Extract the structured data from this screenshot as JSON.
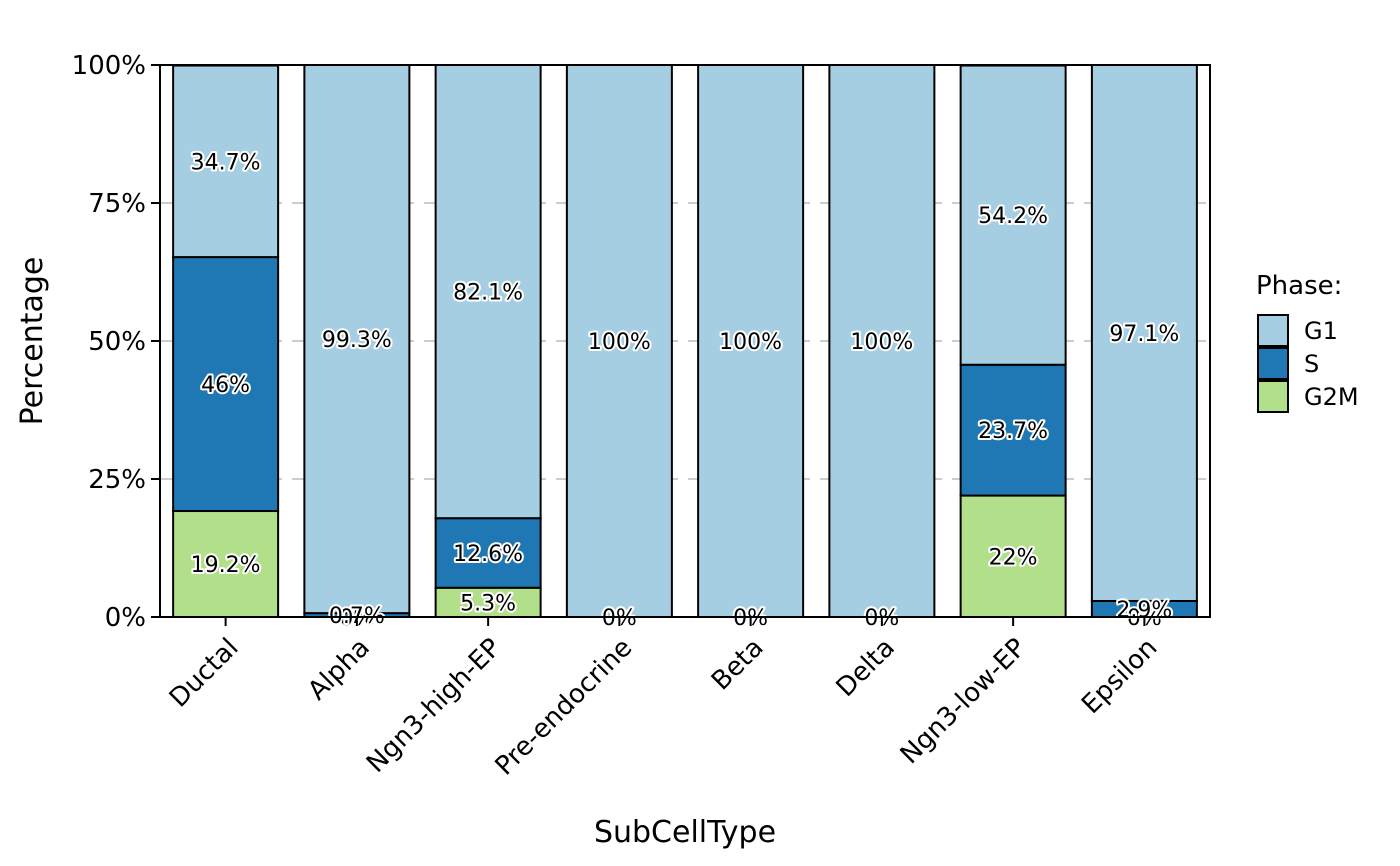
{
  "chart_data": {
    "type": "bar",
    "stacked": true,
    "title": "",
    "xlabel": "SubCellType",
    "ylabel": "Percentage",
    "ylim": [
      0,
      100
    ],
    "yticks": [
      "0%",
      "25%",
      "50%",
      "75%",
      "100%"
    ],
    "ytick_values": [
      0,
      25,
      50,
      75,
      100
    ],
    "grid": "horizontal dashed",
    "legend_position": "right",
    "legend_title": "Phase:",
    "categories": [
      "Ductal",
      "Alpha",
      "Ngn3-high-EP",
      "Pre-endocrine",
      "Beta",
      "Delta",
      "Ngn3-low-EP",
      "Epsilon"
    ],
    "series": [
      {
        "name": "G1",
        "color": "#a6cee3",
        "values": [
          34.7,
          99.3,
          82.1,
          100,
          100,
          100,
          54.2,
          97.1
        ],
        "labels": [
          "34.7%",
          "99.3%",
          "82.1%",
          "100%",
          "100%",
          "100%",
          "54.2%",
          "97.1%"
        ]
      },
      {
        "name": "S",
        "color": "#1f78b4",
        "values": [
          46,
          0.7,
          12.6,
          0,
          0,
          0,
          23.7,
          2.9
        ],
        "labels": [
          "46%",
          "0.7%",
          "12.6%",
          "0%",
          "0%",
          "0%",
          "23.7%",
          "2.9%"
        ]
      },
      {
        "name": "G2M",
        "color": "#b2df8a",
        "values": [
          19.2,
          0,
          5.3,
          0,
          0,
          0,
          22,
          0
        ],
        "labels": [
          "19.2%",
          "0%",
          "5.3%",
          "0%",
          "0%",
          "0%",
          "22%",
          "0%"
        ]
      }
    ]
  }
}
